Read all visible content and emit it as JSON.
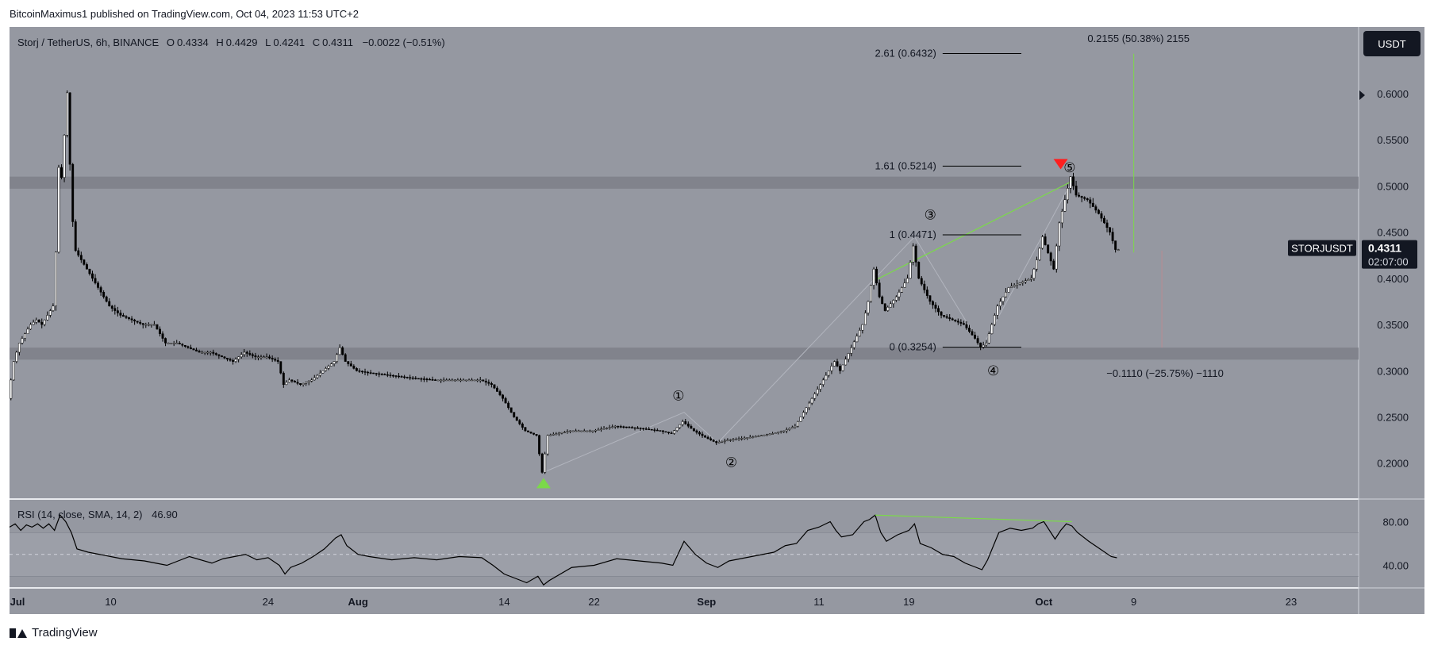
{
  "header": {
    "publisher_line": "BitcoinMaximus1 published on TradingView.com, Oct 04, 2023 11:53 UTC+2"
  },
  "footer": {
    "brand": "TradingView"
  },
  "colors": {
    "background": "#9598a1",
    "panel_bg": "#9598a1",
    "zone": "#7e818a",
    "candle": "#000000",
    "green": "#7bd94a",
    "red": "#ff1f1f",
    "label_dark": "#131722"
  },
  "chart_data": [
    {
      "type": "line",
      "title": "",
      "legend": {
        "symbol": "Storj / TetherUS, 6h, BINANCE",
        "o_label": "O",
        "o": "0.4334",
        "h_label": "H",
        "h": "0.4429",
        "l_label": "L",
        "l": "0.4241",
        "c_label": "C",
        "c": "0.4311",
        "change": "−0.0022 (−0.51%)"
      },
      "currency_button": "USDT",
      "y_ticks": [
        "0.6000",
        "0.5500",
        "0.5000",
        "0.4500",
        "0.4000",
        "0.3500",
        "0.3000",
        "0.2500",
        "0.2000"
      ],
      "y_tick_values": [
        0.6,
        0.55,
        0.5,
        0.45,
        0.4,
        0.35,
        0.3,
        0.25,
        0.2
      ],
      "ylim": [
        0.162,
        0.672
      ],
      "price_tag": {
        "symbol": "STORJUSDT",
        "price": "0.4311",
        "countdown": "02:07:00"
      },
      "x_ticks": [
        "Jul",
        "10",
        "24",
        "Aug",
        "14",
        "22",
        "Sep",
        "11",
        "19",
        "Oct",
        "9",
        "23"
      ],
      "x_tick_values": [
        0,
        9,
        23,
        31,
        44,
        52,
        62,
        72,
        80,
        92,
        100,
        114
      ],
      "xlim": [
        0,
        120
      ],
      "x_unit": "days since Jul 1, 2023",
      "price_series": [
        [
          0,
          0.27
        ],
        [
          0.5,
          0.31
        ],
        [
          1,
          0.33
        ],
        [
          1.5,
          0.34
        ],
        [
          2,
          0.35
        ],
        [
          2.5,
          0.355
        ],
        [
          3,
          0.35
        ],
        [
          3.5,
          0.36
        ],
        [
          4,
          0.37
        ],
        [
          4.3,
          0.44
        ],
        [
          4.5,
          0.52
        ],
        [
          4.7,
          0.5
        ],
        [
          5,
          0.555
        ],
        [
          5.3,
          0.61
        ],
        [
          5.6,
          0.48
        ],
        [
          6,
          0.43
        ],
        [
          7,
          0.41
        ],
        [
          8,
          0.39
        ],
        [
          9,
          0.37
        ],
        [
          10,
          0.36
        ],
        [
          11,
          0.355
        ],
        [
          12,
          0.35
        ],
        [
          13,
          0.35
        ],
        [
          14,
          0.33
        ],
        [
          15,
          0.33
        ],
        [
          16,
          0.325
        ],
        [
          17,
          0.32
        ],
        [
          18,
          0.32
        ],
        [
          19,
          0.315
        ],
        [
          20,
          0.31
        ],
        [
          21,
          0.32
        ],
        [
          22,
          0.315
        ],
        [
          23,
          0.315
        ],
        [
          24,
          0.31
        ],
        [
          24.5,
          0.285
        ],
        [
          25,
          0.29
        ],
        [
          26,
          0.285
        ],
        [
          27,
          0.29
        ],
        [
          28,
          0.3
        ],
        [
          29,
          0.31
        ],
        [
          29.5,
          0.325
        ],
        [
          30,
          0.31
        ],
        [
          31,
          0.3
        ],
        [
          32,
          0.298
        ],
        [
          34,
          0.295
        ],
        [
          36,
          0.292
        ],
        [
          38,
          0.29
        ],
        [
          40,
          0.29
        ],
        [
          42,
          0.29
        ],
        [
          43,
          0.285
        ],
        [
          44,
          0.27
        ],
        [
          45,
          0.25
        ],
        [
          46,
          0.235
        ],
        [
          47,
          0.23
        ],
        [
          47.5,
          0.19
        ],
        [
          48,
          0.23
        ],
        [
          50,
          0.235
        ],
        [
          52,
          0.235
        ],
        [
          54,
          0.24
        ],
        [
          56,
          0.238
        ],
        [
          58,
          0.235
        ],
        [
          59,
          0.232
        ],
        [
          60,
          0.245
        ],
        [
          61,
          0.235
        ],
        [
          62,
          0.228
        ],
        [
          63,
          0.222
        ],
        [
          64,
          0.225
        ],
        [
          66,
          0.228
        ],
        [
          68,
          0.232
        ],
        [
          69,
          0.235
        ],
        [
          70,
          0.24
        ],
        [
          71,
          0.26
        ],
        [
          72,
          0.28
        ],
        [
          73,
          0.3
        ],
        [
          73.5,
          0.31
        ],
        [
          74,
          0.3
        ],
        [
          75,
          0.325
        ],
        [
          76,
          0.35
        ],
        [
          76.5,
          0.375
        ],
        [
          77,
          0.41
        ],
        [
          77.5,
          0.38
        ],
        [
          78,
          0.365
        ],
        [
          79,
          0.38
        ],
        [
          80,
          0.4
        ],
        [
          80.5,
          0.435
        ],
        [
          81,
          0.4
        ],
        [
          82,
          0.375
        ],
        [
          83,
          0.36
        ],
        [
          84,
          0.355
        ],
        [
          85,
          0.35
        ],
        [
          86,
          0.335
        ],
        [
          86.5,
          0.3254
        ],
        [
          87,
          0.33
        ],
        [
          88,
          0.37
        ],
        [
          89,
          0.39
        ],
        [
          90,
          0.395
        ],
        [
          91,
          0.4
        ],
        [
          91.5,
          0.42
        ],
        [
          92,
          0.445
        ],
        [
          93,
          0.41
        ],
        [
          93.5,
          0.46
        ],
        [
          94,
          0.485
        ],
        [
          94.5,
          0.51
        ],
        [
          95,
          0.49
        ],
        [
          96,
          0.485
        ],
        [
          97,
          0.47
        ],
        [
          98,
          0.45
        ],
        [
          98.5,
          0.4311
        ]
      ],
      "zones": [
        {
          "from": 0.497,
          "to": 0.51
        },
        {
          "from": 0.312,
          "to": 0.325
        }
      ],
      "fib_levels": [
        {
          "label": "2.61 (0.6432)",
          "value": 0.6432
        },
        {
          "label": "1.61 (0.5214)",
          "value": 0.5214
        },
        {
          "label": "1 (0.4471)",
          "value": 0.4471
        },
        {
          "label": "0 (0.3254)",
          "value": 0.3254
        }
      ],
      "fib_x_range": [
        83,
        90
      ],
      "wave_labels": [
        {
          "label": "①",
          "x": 59.5,
          "y": 0.268
        },
        {
          "label": "②",
          "x": 64.2,
          "y": 0.196
        },
        {
          "label": "③",
          "x": 81.9,
          "y": 0.464
        },
        {
          "label": "④",
          "x": 87.5,
          "y": 0.295
        },
        {
          "label": "⑤",
          "x": 94.3,
          "y": 0.515
        }
      ],
      "elliott_path": [
        [
          47.5,
          0.19
        ],
        [
          60,
          0.255
        ],
        [
          63,
          0.222
        ],
        [
          80.5,
          0.445
        ],
        [
          86.5,
          0.3254
        ],
        [
          94.5,
          0.505
        ]
      ],
      "divergence_line_price": [
        [
          77,
          0.398
        ],
        [
          94.5,
          0.505
        ]
      ],
      "markers": [
        {
          "kind": "up-triangle",
          "color": "green",
          "x": 47.5,
          "y": 0.178
        },
        {
          "kind": "down-triangle",
          "color": "red",
          "x": 93.5,
          "y": 0.524
        }
      ],
      "measure_up": {
        "label": "0.2155 (50.38%) 2155",
        "x": 100,
        "from": 0.428,
        "to": 0.643
      },
      "measure_down": {
        "label": "−0.1110 (−25.75%) −1110",
        "x": 102.5,
        "from": 0.43,
        "to": 0.325
      }
    },
    {
      "type": "line",
      "title": "",
      "legend": {
        "name": "RSI (14, close, SMA, 14, 2)",
        "value": "46.90"
      },
      "y_ticks": [
        "80.00",
        "40.00"
      ],
      "y_tick_values": [
        80,
        40
      ],
      "ylim": [
        20,
        100
      ],
      "bands": {
        "upper": 70,
        "mid": 50,
        "lower": 30
      },
      "rsi_series": [
        [
          0,
          75
        ],
        [
          0.5,
          78
        ],
        [
          1,
          72
        ],
        [
          1.5,
          77
        ],
        [
          2,
          75
        ],
        [
          2.5,
          78
        ],
        [
          3,
          74
        ],
        [
          3.5,
          78
        ],
        [
          4,
          72
        ],
        [
          4.5,
          86
        ],
        [
          5,
          80
        ],
        [
          5.5,
          70
        ],
        [
          6,
          55
        ],
        [
          7,
          52
        ],
        [
          8,
          50
        ],
        [
          9,
          48
        ],
        [
          10,
          46
        ],
        [
          11,
          45
        ],
        [
          12,
          44
        ],
        [
          13,
          42
        ],
        [
          14,
          40
        ],
        [
          15,
          44
        ],
        [
          16,
          48
        ],
        [
          17,
          45
        ],
        [
          18,
          42
        ],
        [
          19,
          46
        ],
        [
          20,
          48
        ],
        [
          21,
          50
        ],
        [
          22,
          45
        ],
        [
          23,
          47
        ],
        [
          24,
          40
        ],
        [
          24.5,
          32
        ],
        [
          25,
          38
        ],
        [
          26,
          42
        ],
        [
          27,
          48
        ],
        [
          28,
          55
        ],
        [
          29,
          65
        ],
        [
          29.5,
          68
        ],
        [
          30,
          58
        ],
        [
          31,
          50
        ],
        [
          32,
          48
        ],
        [
          34,
          45
        ],
        [
          36,
          47
        ],
        [
          38,
          45
        ],
        [
          40,
          48
        ],
        [
          42,
          47
        ],
        [
          43,
          40
        ],
        [
          44,
          32
        ],
        [
          45,
          28
        ],
        [
          46,
          24
        ],
        [
          47,
          30
        ],
        [
          47.5,
          22
        ],
        [
          48,
          26
        ],
        [
          50,
          38
        ],
        [
          52,
          40
        ],
        [
          54,
          46
        ],
        [
          56,
          44
        ],
        [
          58,
          42
        ],
        [
          59,
          40
        ],
        [
          60,
          62
        ],
        [
          61,
          50
        ],
        [
          62,
          42
        ],
        [
          63,
          38
        ],
        [
          64,
          44
        ],
        [
          66,
          48
        ],
        [
          68,
          52
        ],
        [
          69,
          58
        ],
        [
          70,
          60
        ],
        [
          71,
          72
        ],
        [
          72,
          75
        ],
        [
          73,
          80
        ],
        [
          73.5,
          72
        ],
        [
          74,
          66
        ],
        [
          75,
          68
        ],
        [
          76,
          80
        ],
        [
          76.5,
          82
        ],
        [
          77,
          86
        ],
        [
          77.5,
          70
        ],
        [
          78,
          62
        ],
        [
          79,
          68
        ],
        [
          80,
          72
        ],
        [
          80.5,
          78
        ],
        [
          81,
          60
        ],
        [
          82,
          56
        ],
        [
          83,
          50
        ],
        [
          84,
          48
        ],
        [
          85,
          42
        ],
        [
          86,
          38
        ],
        [
          86.5,
          36
        ],
        [
          87,
          45
        ],
        [
          88,
          70
        ],
        [
          89,
          74
        ],
        [
          90,
          72
        ],
        [
          91,
          74
        ],
        [
          91.5,
          78
        ],
        [
          92,
          80
        ],
        [
          93,
          64
        ],
        [
          93.5,
          72
        ],
        [
          94,
          78
        ],
        [
          94.5,
          76
        ],
        [
          95,
          70
        ],
        [
          96,
          62
        ],
        [
          97,
          55
        ],
        [
          98,
          48
        ],
        [
          98.5,
          46.9
        ]
      ],
      "divergence_line_rsi": [
        [
          77,
          86
        ],
        [
          94.5,
          80
        ]
      ]
    }
  ]
}
